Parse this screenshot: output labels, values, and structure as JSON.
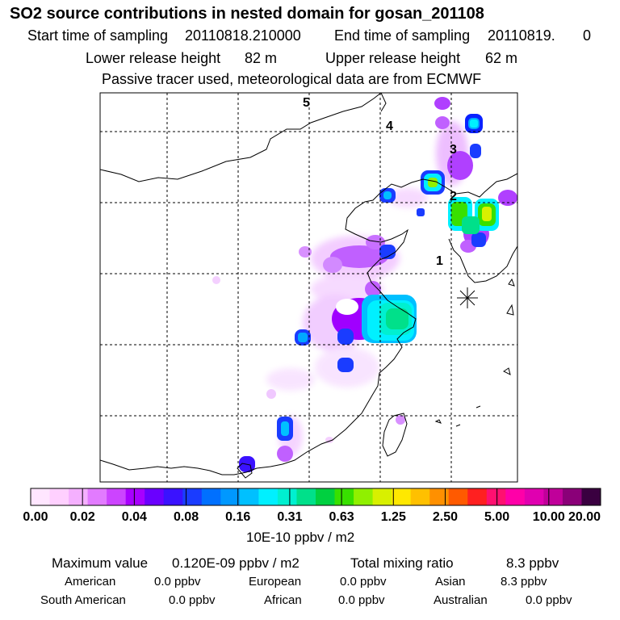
{
  "title": "SO2 source contributions in nested domain for gosan_201108",
  "header": {
    "start_label": "Start time of sampling",
    "start_value": "20110818.210000",
    "end_label": "End time of sampling",
    "end_value": "20110819.",
    "end_value_tail": "0",
    "lower_label": "Lower release height",
    "lower_value": "82 m",
    "upper_label": "Upper release height",
    "upper_value": "62 m",
    "tracer_note": "Passive tracer used, meteorological data are from ECMWF"
  },
  "map": {
    "trajectory_labels": [
      "1",
      "2",
      "3",
      "4",
      "5"
    ],
    "receptor_marker": "star-receptor-icon"
  },
  "colorbar": {
    "colors": [
      "#ffe6ff",
      "#ffd0ff",
      "#f5b0ff",
      "#e27bff",
      "#cc44ff",
      "#a800ff",
      "#6a00ff",
      "#3a12ff",
      "#1a3cff",
      "#0070ff",
      "#0098ff",
      "#00c0ff",
      "#00f0ff",
      "#00f0d0",
      "#00e08a",
      "#00d040",
      "#38e000",
      "#90f000",
      "#d8f000",
      "#ffe800",
      "#ffc000",
      "#ff9000",
      "#ff5a00",
      "#ff2020",
      "#ff1070",
      "#ff00a8",
      "#e000b0",
      "#c0009a",
      "#8a0078",
      "#3a0040"
    ],
    "labels": [
      "0.00",
      "0.02",
      "0.04",
      "0.08",
      "0.16",
      "0.31",
      "0.63",
      "1.25",
      "2.50",
      "5.00",
      "10.00",
      "20.00"
    ],
    "unit": "10E-10 ppbv / m2"
  },
  "summary": {
    "max_label": "Maximum value",
    "max_value": "0.120E-09 ppbv / m2",
    "total_label": "Total mixing ratio",
    "total_value": "8.3 ppbv",
    "regions": [
      {
        "name": "American",
        "value": "0.0 ppbv"
      },
      {
        "name": "European",
        "value": "0.0 ppbv"
      },
      {
        "name": "Asian",
        "value": "8.3 ppbv"
      },
      {
        "name": "South American",
        "value": "0.0 ppbv"
      },
      {
        "name": "African",
        "value": "0.0 ppbv"
      },
      {
        "name": "Australian",
        "value": "0.0 ppbv"
      }
    ]
  }
}
